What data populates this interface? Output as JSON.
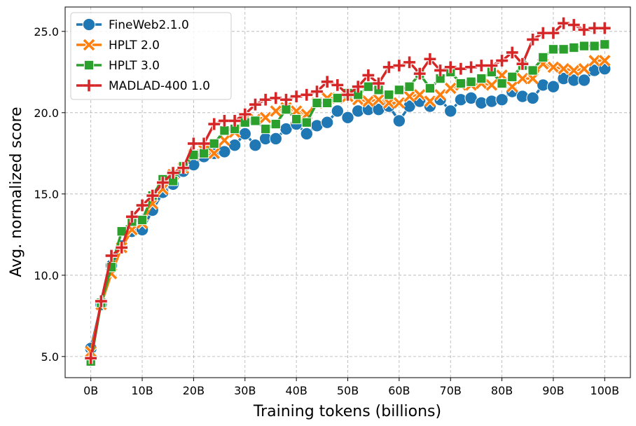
{
  "chart_data": {
    "type": "line",
    "xlabel": "Training tokens (billions)",
    "ylabel": "Avg. normalized score",
    "xlim": [
      -5,
      105
    ],
    "ylim": [
      3.7,
      26.5
    ],
    "x_ticks": [
      0,
      10,
      20,
      30,
      40,
      50,
      60,
      70,
      80,
      90,
      100
    ],
    "x_tick_labels": [
      "0B",
      "10B",
      "20B",
      "30B",
      "40B",
      "50B",
      "60B",
      "70B",
      "80B",
      "90B",
      "100B"
    ],
    "y_ticks": [
      5,
      10,
      15,
      20,
      25
    ],
    "y_tick_labels": [
      "5.0",
      "10.0",
      "15.0",
      "20.0",
      "25.0"
    ],
    "grid": true,
    "legend_position": "top-left",
    "x": [
      0,
      2,
      4,
      6,
      8,
      10,
      12,
      14,
      16,
      18,
      20,
      22,
      24,
      26,
      28,
      30,
      32,
      34,
      36,
      38,
      40,
      42,
      44,
      46,
      48,
      50,
      52,
      54,
      56,
      58,
      60,
      62,
      64,
      66,
      68,
      70,
      72,
      74,
      76,
      78,
      80,
      82,
      84,
      86,
      88,
      90,
      92,
      94,
      96,
      98,
      100
    ],
    "series": [
      {
        "name": "FineWeb2.1.0",
        "color": "#1f77b4",
        "marker": "circle",
        "values": [
          5.5,
          8.2,
          10.6,
          11.8,
          12.7,
          12.8,
          14.0,
          15.1,
          15.6,
          16.4,
          16.8,
          17.3,
          17.5,
          17.6,
          18.0,
          18.7,
          18.0,
          18.4,
          18.4,
          19.0,
          19.3,
          18.7,
          19.2,
          19.4,
          20.1,
          19.7,
          20.1,
          20.2,
          20.2,
          20.4,
          19.5,
          20.4,
          20.7,
          20.4,
          20.8,
          20.1,
          20.8,
          20.9,
          20.6,
          20.7,
          20.8,
          21.3,
          21.0,
          20.9,
          21.7,
          21.6,
          22.1,
          22.0,
          22.0,
          22.6,
          22.7
        ]
      },
      {
        "name": "HPLT 2.0",
        "color": "#ff7f0e",
        "marker": "x",
        "values": [
          5.3,
          8.2,
          10.1,
          11.7,
          12.8,
          13.2,
          14.4,
          15.3,
          16.2,
          16.6,
          17.4,
          17.7,
          17.5,
          18.3,
          18.8,
          19.6,
          19.6,
          19.7,
          20.1,
          20.3,
          20.1,
          19.9,
          20.6,
          20.9,
          20.9,
          21.0,
          20.8,
          20.7,
          20.8,
          20.6,
          20.6,
          21.0,
          21.1,
          20.7,
          21.1,
          21.5,
          21.7,
          21.7,
          21.8,
          21.7,
          22.3,
          21.6,
          22.1,
          22.1,
          23.0,
          22.8,
          22.7,
          22.6,
          22.7,
          23.2,
          23.2
        ]
      },
      {
        "name": "HPLT 3.0",
        "color": "#2ca02c",
        "marker": "square",
        "values": [
          4.7,
          8.3,
          10.5,
          12.7,
          13.3,
          13.4,
          14.9,
          15.9,
          15.8,
          16.7,
          17.4,
          17.5,
          18.1,
          18.9,
          19.0,
          19.4,
          19.5,
          19.0,
          19.3,
          20.2,
          19.6,
          19.4,
          20.6,
          20.6,
          20.9,
          21.2,
          21.1,
          21.6,
          21.4,
          21.1,
          21.4,
          21.6,
          22.4,
          21.5,
          22.1,
          22.5,
          21.8,
          21.9,
          22.1,
          22.5,
          21.8,
          22.2,
          22.9,
          22.6,
          23.4,
          23.9,
          23.9,
          24.0,
          24.1,
          24.1,
          24.2
        ]
      },
      {
        "name": "MADLAD-400 1.0",
        "color": "#d62728",
        "marker": "plus",
        "values": [
          4.9,
          8.4,
          11.2,
          11.7,
          13.6,
          14.3,
          14.9,
          15.7,
          16.3,
          16.6,
          18.1,
          18.1,
          19.3,
          19.5,
          19.5,
          19.9,
          20.5,
          20.8,
          20.9,
          20.8,
          21.0,
          21.1,
          21.3,
          21.9,
          21.7,
          21.1,
          21.6,
          22.3,
          21.8,
          22.8,
          22.9,
          23.1,
          22.4,
          23.3,
          22.6,
          22.8,
          22.7,
          22.8,
          22.9,
          22.9,
          23.2,
          23.7,
          23.0,
          24.5,
          24.9,
          24.9,
          25.5,
          25.4,
          25.1,
          25.2,
          25.2
        ]
      }
    ]
  }
}
